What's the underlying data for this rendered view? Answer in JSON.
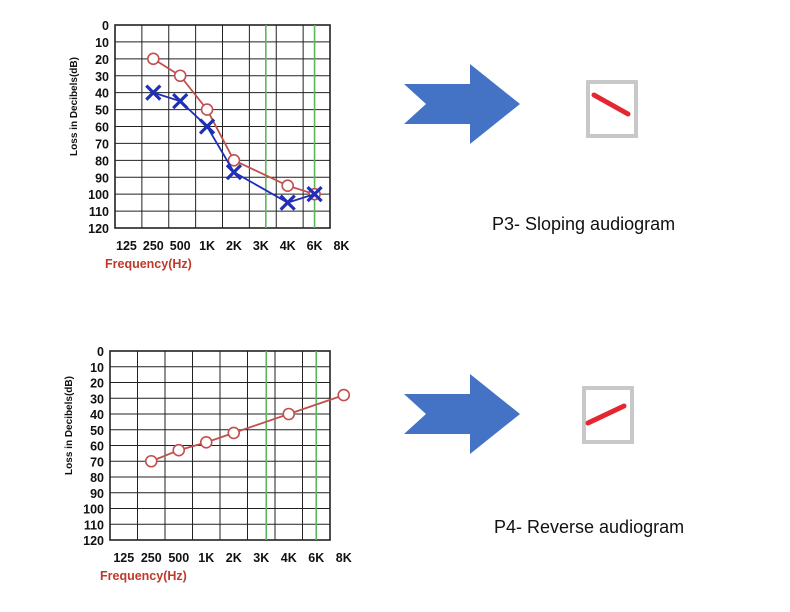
{
  "chart_data": [
    {
      "type": "line",
      "ylabel": "Loss in Decibels(dB)",
      "xlabel": "Frequency(Hz)",
      "yticks": [
        "0",
        "10",
        "20",
        "30",
        "40",
        "50",
        "60",
        "70",
        "80",
        "90",
        "100",
        "110",
        "120"
      ],
      "xticks": [
        "125",
        "250",
        "500",
        "1K",
        "2K",
        "3K",
        "4K",
        "6K",
        "8K"
      ],
      "ylim": [
        0,
        120
      ],
      "y_inverted": true,
      "grid": true,
      "highlight_frequencies": [
        "3K",
        "6K"
      ],
      "series": [
        {
          "marker": "circle",
          "color": "#c0504d",
          "points": [
            [
              "250",
              20
            ],
            [
              "500",
              30
            ],
            [
              "1K",
              50
            ],
            [
              "2K",
              80
            ],
            [
              "4K",
              95
            ],
            [
              "6K",
              100
            ]
          ]
        },
        {
          "marker": "x",
          "color": "#1f2fb8",
          "points": [
            [
              "250",
              40
            ],
            [
              "500",
              45
            ],
            [
              "1K",
              60
            ],
            [
              "2K",
              87
            ],
            [
              "4K",
              105
            ],
            [
              "6K",
              100
            ]
          ]
        }
      ],
      "caption": "P3- Sloping audiogram"
    },
    {
      "type": "line",
      "ylabel": "Loss in Decibels(dB)",
      "xlabel": "Frequency(Hz)",
      "yticks": [
        "0",
        "10",
        "20",
        "30",
        "40",
        "50",
        "60",
        "70",
        "80",
        "90",
        "100",
        "110",
        "120"
      ],
      "xticks": [
        "125",
        "250",
        "500",
        "1K",
        "2K",
        "3K",
        "4K",
        "6K",
        "8K"
      ],
      "ylim": [
        0,
        120
      ],
      "y_inverted": true,
      "grid": true,
      "highlight_frequencies": [
        "3K",
        "6K"
      ],
      "series": [
        {
          "marker": "circle",
          "color": "#c0504d",
          "points": [
            [
              "250",
              70
            ],
            [
              "500",
              63
            ],
            [
              "1K",
              58
            ],
            [
              "2K",
              52
            ],
            [
              "4K",
              40
            ],
            [
              "8K",
              28
            ]
          ]
        }
      ],
      "caption": "P4- Reverse audiogram"
    }
  ],
  "colors": {
    "arrow": "#4472c4",
    "icon_line": "#e3262f",
    "icon_frame": "#c8c8c8",
    "grid": "#222222",
    "highlight": "#5cb85c",
    "xlabel": "#c0392b"
  },
  "icons": [
    "right-arrow-icon",
    "sloping-line-icon",
    "rising-line-icon"
  ],
  "icon_directions": [
    "down",
    "up"
  ]
}
